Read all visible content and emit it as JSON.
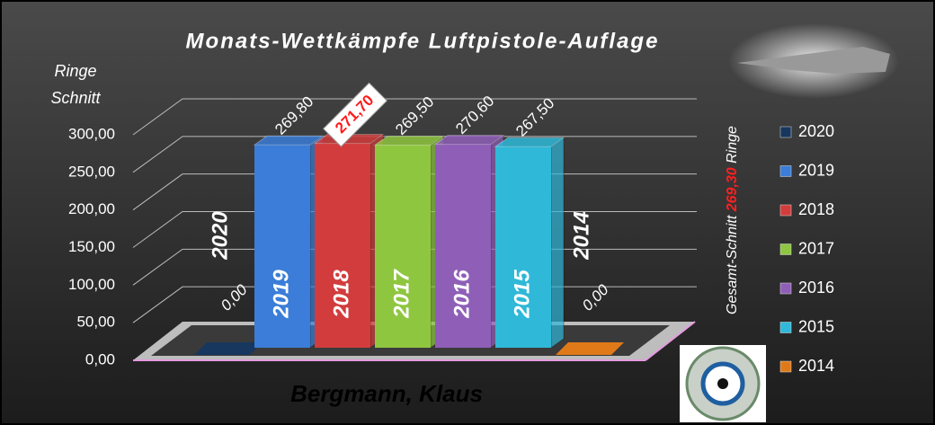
{
  "chart_data": {
    "type": "bar3d",
    "title": "Monats-Wettkämpfe Luftpistole-Auflage",
    "y_label": [
      "Ringe",
      "Schnitt"
    ],
    "annotation": [
      "Gesamt-Schnitt ",
      "269,30",
      " Ringe"
    ],
    "footer": "Bergmann, Klaus",
    "categories": [
      "2020",
      "2019",
      "2018",
      "2017",
      "2016",
      "2015",
      "2014"
    ],
    "values": [
      0,
      269.8,
      271.7,
      269.5,
      270.6,
      267.5,
      0
    ],
    "value_labels": [
      "0,00",
      "269,80",
      "271,70",
      "269,50",
      "270,60",
      "267,50",
      "0,00"
    ],
    "colors": [
      "#17375e",
      "#3b7dd8",
      "#d23c3c",
      "#8fc640",
      "#8f5fb8",
      "#2fb8d8",
      "#e07a18"
    ],
    "highlight": "271,70",
    "ylim": [
      0,
      300
    ],
    "yticks": [
      {
        "value": 0,
        "label": "0,00"
      },
      {
        "value": 50,
        "label": "50,00"
      },
      {
        "value": 100,
        "label": "100,00"
      },
      {
        "value": 150,
        "label": "150,00"
      },
      {
        "value": 200,
        "label": "200,00"
      },
      {
        "value": 250,
        "label": "250,00"
      },
      {
        "value": 300,
        "label": "300,00"
      }
    ],
    "grid": true
  }
}
